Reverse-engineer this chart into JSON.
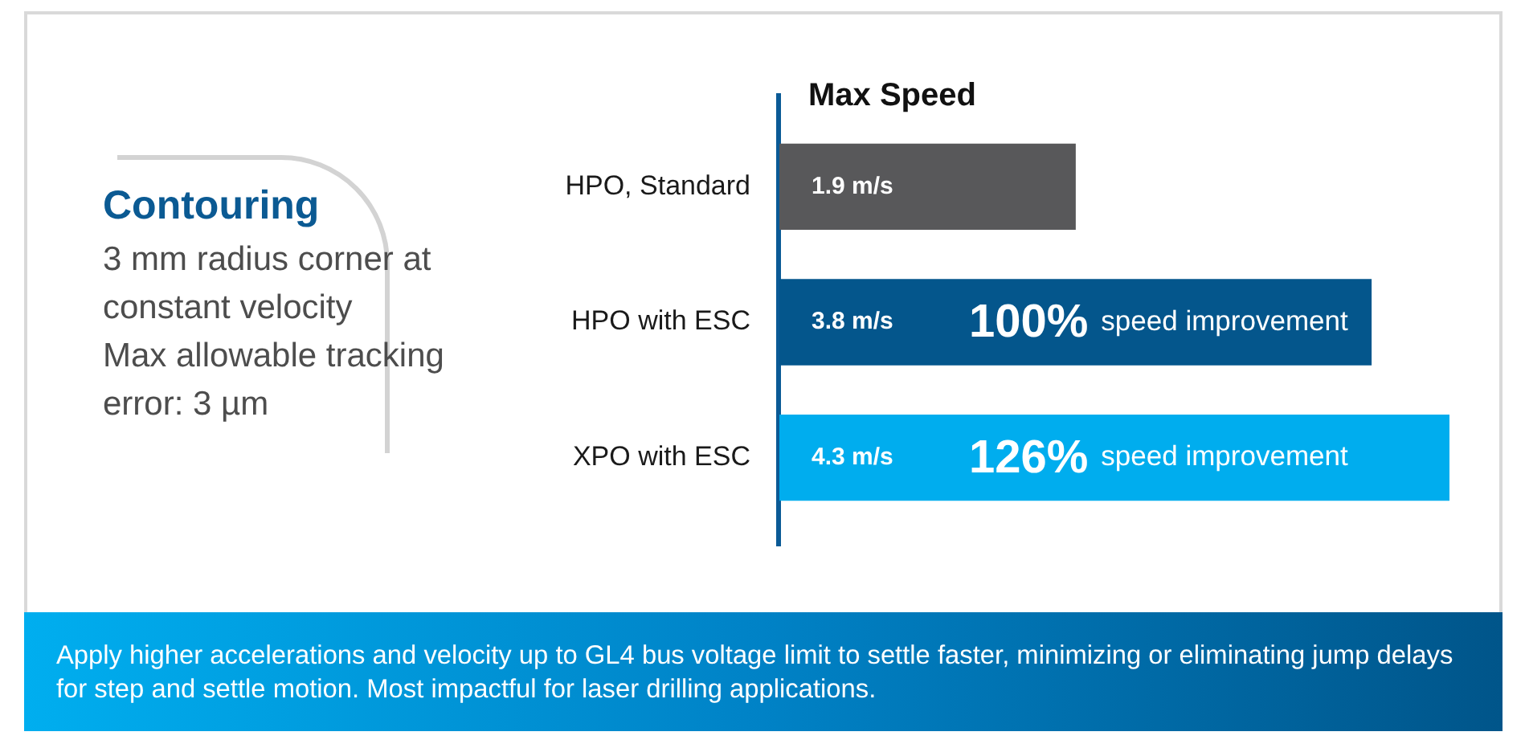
{
  "chart_data": {
    "type": "bar",
    "orientation": "horizontal",
    "title": "Max Speed",
    "categories": [
      "HPO, Standard",
      "HPO with ESC",
      "XPO with ESC"
    ],
    "values": [
      1.9,
      3.8,
      4.3
    ],
    "colors": [
      "#58585a",
      "#04568c",
      "#00adee"
    ],
    "value_labels": [
      "1.9 m/s",
      "3.8 m/s",
      "4.3 m/s"
    ],
    "tick_labels": "y",
    "annotations": [
      "Contouring",
      "3 mm radius corner at constant velocity",
      "Max allowable tracking error: 3 µm",
      "100% speed improvement",
      "126% speed improvement",
      "Apply higher accelerations and velocity up to GL4 bus voltage limit to settle faster, minimizing or eliminating jump delays for step and settle motion. Most impactful for laser drilling applications."
    ]
  }
}
